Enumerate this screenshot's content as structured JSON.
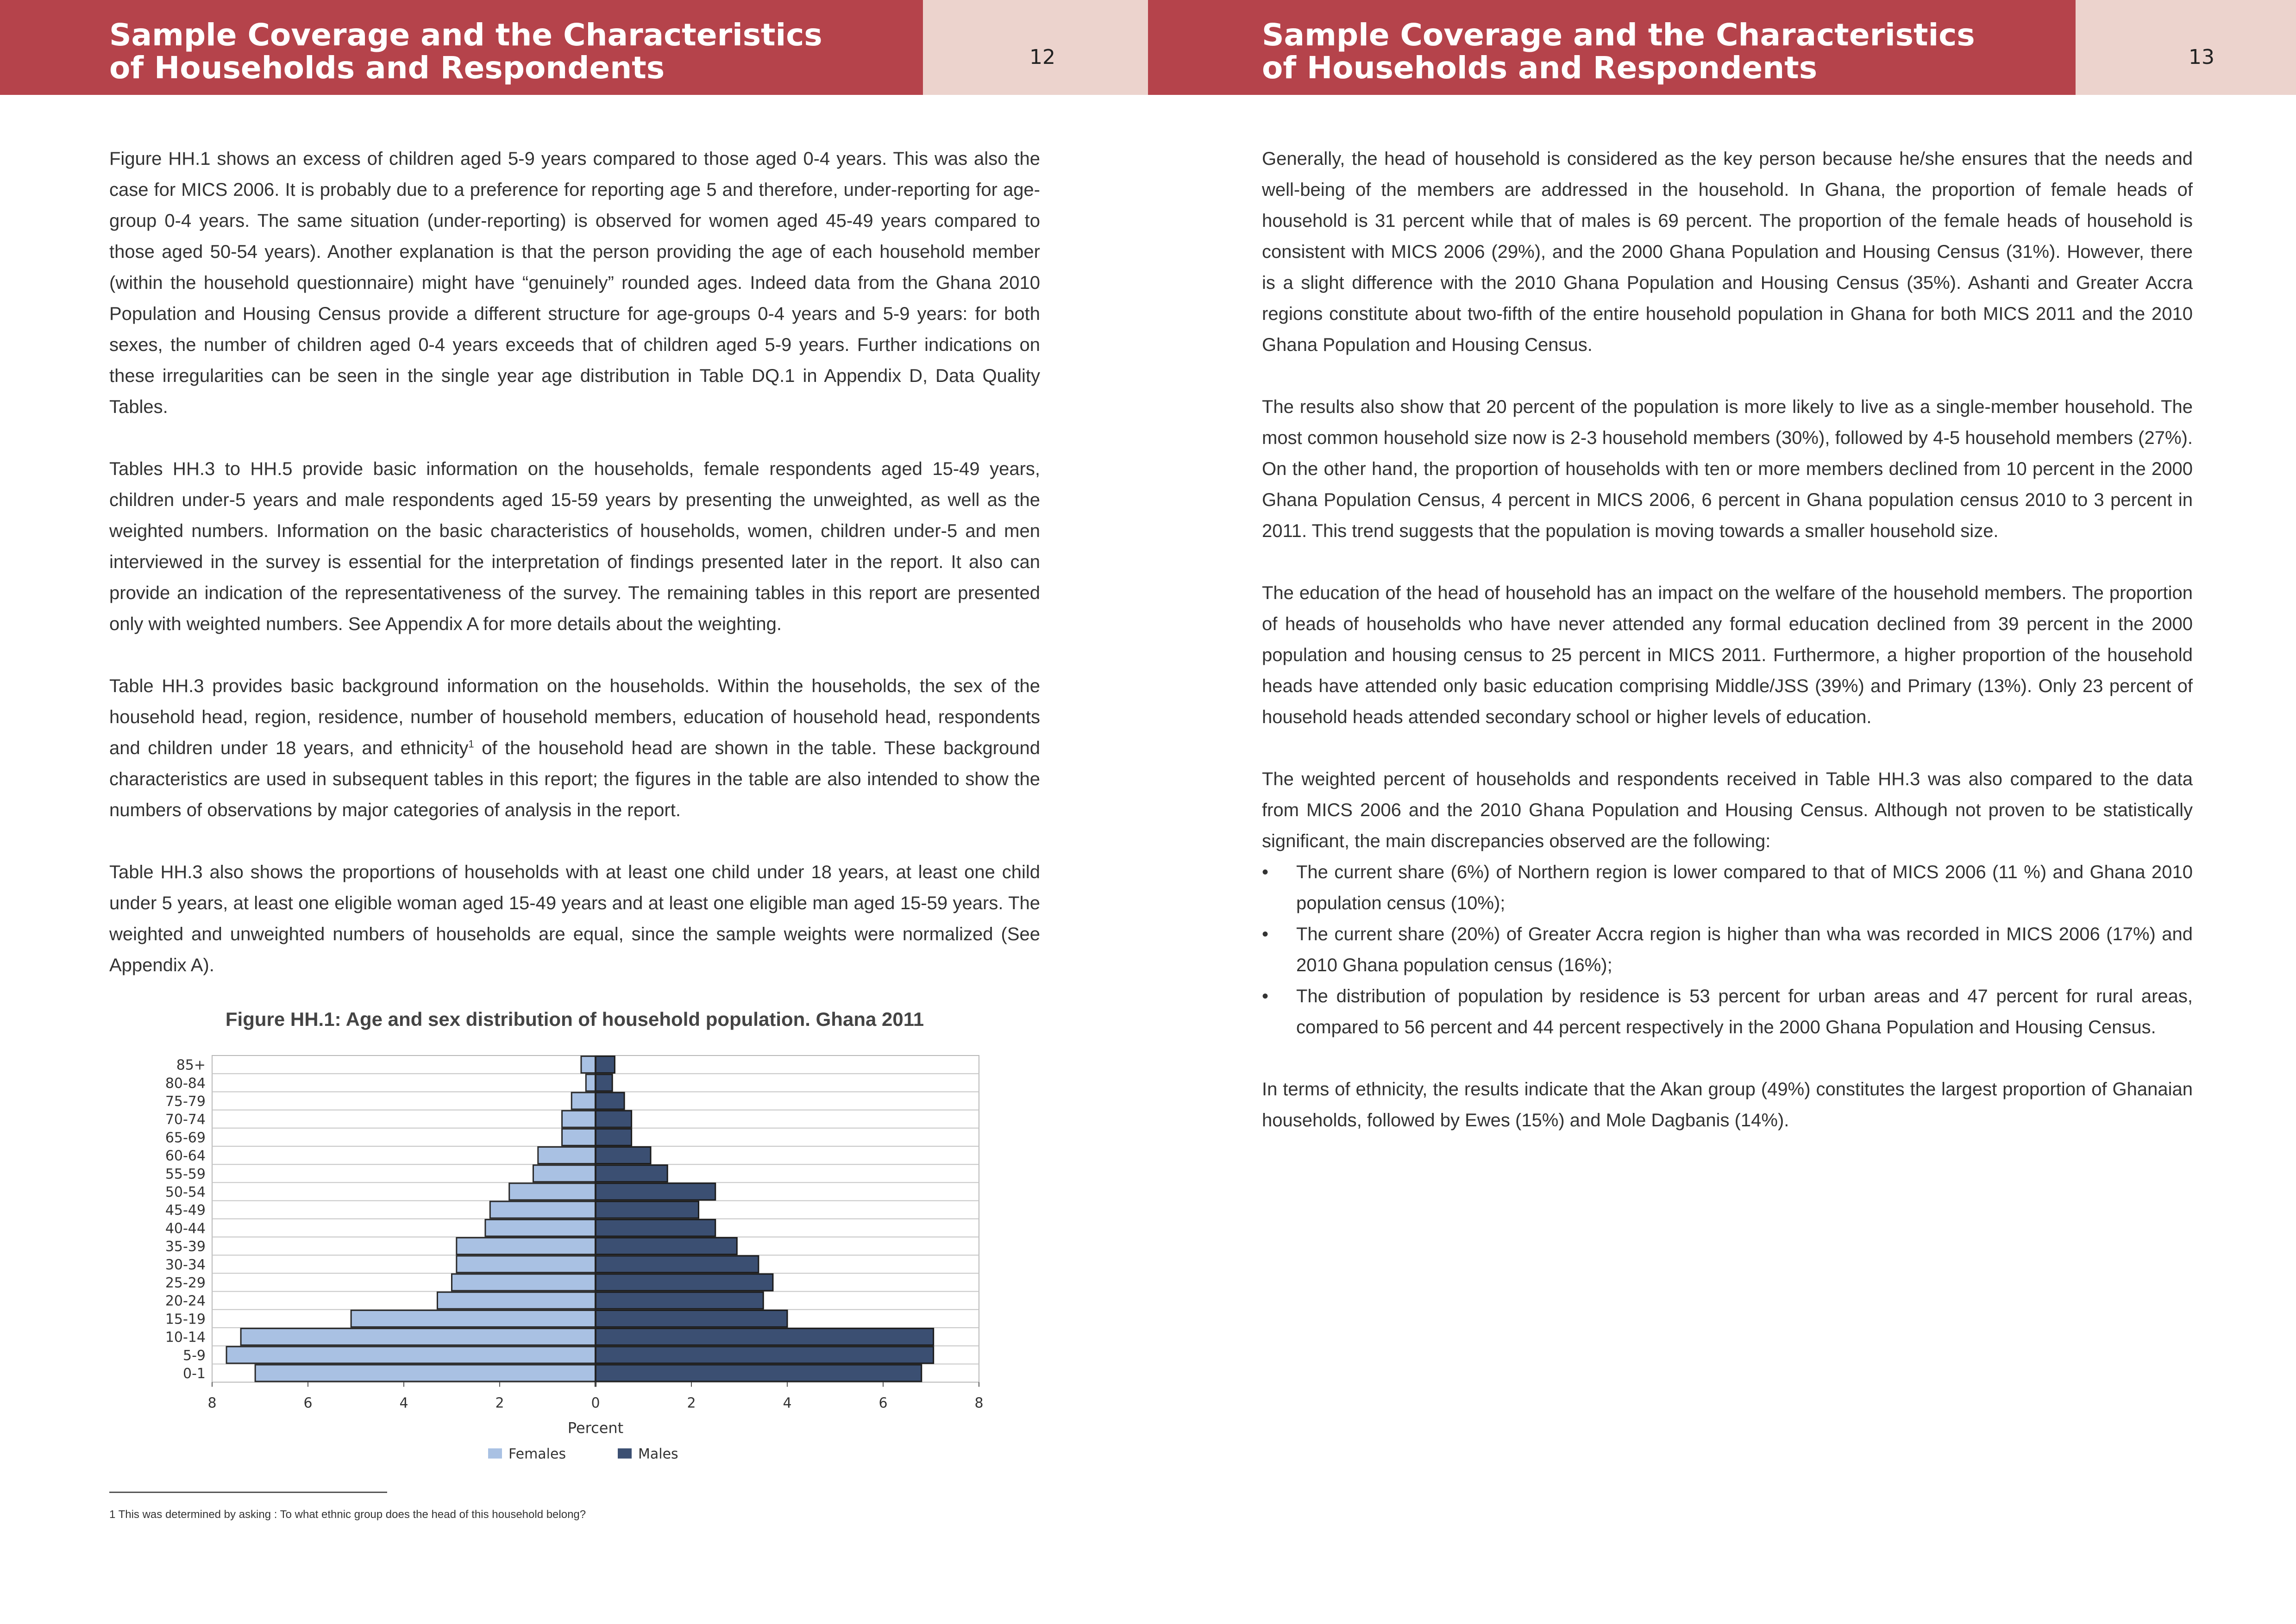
{
  "left_page": {
    "header_title": "Sample Coverage and the Characteristics\nof Households and Respondents",
    "page_number": "12",
    "paragraphs": [
      "Figure HH.1 shows an excess of children aged 5-9 years compared to those aged 0-4 years. This was also the case for MICS 2006. It is probably due to a preference for reporting age 5 and therefore, under-reporting for age-group 0-4 years. The same situation (under-reporting) is observed for women aged 45-49 years compared to those aged 50-54 years). Another explanation is that the person providing the age of each household member (within the household questionnaire) might have “genuinely” rounded ages. Indeed data from the Ghana 2010 Population and Housing Census provide a different structure for age-groups 0-4 years and 5-9 years: for both sexes, the number of children aged 0-4 years exceeds that of children aged 5-9 years. Further indications on these irregularities can be seen in the single year age distribution in Table DQ.1 in Appendix D, Data Quality Tables.",
      "Tables HH.3 to HH.5 provide basic information on the households, female respondents aged 15-49 years, children under-5 years and male respondents aged 15-59 years by presenting the unweighted, as well as the weighted numbers. Information on the basic characteristics of households, women, children under-5 and men interviewed in the survey is essential for the interpretation of findings presented later in the report. It also can provide an indication of the representativeness of the survey. The remaining tables in this report are presented only with weighted numbers. See Appendix A for more details about the weighting.",
      "Table HH.3 also shows the proportions of households with at least one child under 18 years, at least one child under 5 years, at least one eligible woman aged 15-49 years and at least one eligible man aged 15-59 years. The weighted and unweighted numbers of households are equal, since the sample weights were normalized (See Appendix A)."
    ],
    "para_ethnicity": {
      "before": "Table HH.3 provides basic background information on the households. Within the households, the sex of the household head, region, residence, number of household members, education of household head, respondents and children under 18 years, and ethnicity",
      "footnote_mark": "1",
      "after": "  of the household head are shown in the table. These background characteristics are used in subsequent tables in this report; the figures in the table are also intended to show the numbers of observations by major categories of analysis in the report."
    },
    "figure_title": "Figure HH.1: Age and sex distribution of household population. Ghana 2011",
    "footnote": "1 This was determined by asking :  To what ethnic group does the head of this household belong?"
  },
  "right_page": {
    "header_title": "Sample Coverage and the Characteristics\nof Households and Respondents",
    "page_number": "13",
    "paragraphs": [
      "Generally, the head of household is considered as the key person because he/she ensures that the needs and well-being of the members are addressed in the household. In Ghana, the proportion of female heads of household is 31 percent while that of males is 69 percent. The proportion of the female heads of household is consistent with MICS 2006 (29%), and the 2000 Ghana Population and Housing Census (31%). However, there is a slight difference with the 2010 Ghana Population and Housing Census (35%). Ashanti and Greater Accra regions constitute about two-fifth of the entire household population in Ghana for both MICS 2011 and the 2010 Ghana Population and Housing Census.",
      "The results also show that 20 percent of the population is more likely to live as a single-member household. The most common household size now is 2-3 household members (30%), followed by 4-5 household members (27%). On the other hand, the proportion of households with ten or more members declined from 10 percent in the 2000 Ghana Population Census, 4 percent in MICS 2006, 6 percent in Ghana population census 2010 to 3 percent in 2011. This trend suggests that the population is moving towards a smaller household size.",
      "The education of the head of household has an impact on the welfare of the household members. The proportion of heads of households who have never attended any formal education declined from 39 percent in the 2000 population and housing census to 25 percent in MICS 2011. Furthermore, a higher proportion of the household heads have attended only basic education comprising Middle/JSS (39%) and Primary (13%). Only 23 percent of household heads attended secondary school or higher levels of education.",
      "The weighted percent of households and respondents received in Table HH.3 was also compared to the data from MICS 2006 and the 2010 Ghana Population and Housing Census. Although not proven to be statistically significant, the main discrepancies observed are the following:"
    ],
    "bullets": [
      "The current share (6%) of Northern region is lower compared to that of MICS 2006 (11 %) and Ghana 2010 population census (10%);",
      "The current share (20%) of Greater Accra region is higher than wha was recorded in MICS 2006 (17%) and 2010 Ghana population census (16%);",
      "The distribution of population by residence is 53 percent for urban areas and 47 percent for rural areas, compared to 56 percent and 44 percent respectively in the 2000 Ghana Population and Housing Census."
    ],
    "closing_paragraph": "In terms of ethnicity, the results indicate that the Akan group (49%) constitutes the largest proportion of Ghanaian households, followed by Ewes (15%) and Mole Dagbanis (14%)."
  },
  "colors": {
    "header_red": "#b5434b",
    "header_pink": "#ecd3cd",
    "females": "#a9c1e3",
    "males": "#3b4f72"
  },
  "chart_data": {
    "type": "bar",
    "orientation": "horizontal-pyramid",
    "title": "Figure HH.1: Age and sex distribution of household population. Ghana 2011",
    "xlabel": "Percent",
    "xlim": [
      -8,
      8
    ],
    "x_ticks": [
      "8",
      "6",
      "4",
      "2",
      "0",
      "2",
      "4",
      "6",
      "8"
    ],
    "categories": [
      "85+",
      "80-84",
      "75-79",
      "70-74",
      "65-69",
      "60-64",
      "55-59",
      "50-54",
      "45-49",
      "40-44",
      "35-39",
      "30-34",
      "25-29",
      "20-24",
      "15-19",
      "10-14",
      "5-9",
      "0-1"
    ],
    "series": [
      {
        "name": "Females",
        "values": [
          0.3,
          0.2,
          0.5,
          0.7,
          0.7,
          1.2,
          1.3,
          1.8,
          2.2,
          2.3,
          2.9,
          2.9,
          3.0,
          3.3,
          5.1,
          7.4,
          7.7,
          7.1
        ]
      },
      {
        "name": "Males",
        "values": [
          0.4,
          0.35,
          0.6,
          0.75,
          0.75,
          1.15,
          1.5,
          2.5,
          2.15,
          2.5,
          2.95,
          3.4,
          3.7,
          3.5,
          4.0,
          7.05,
          7.05,
          6.8
        ]
      }
    ],
    "grid": true,
    "legend": "bottom"
  }
}
